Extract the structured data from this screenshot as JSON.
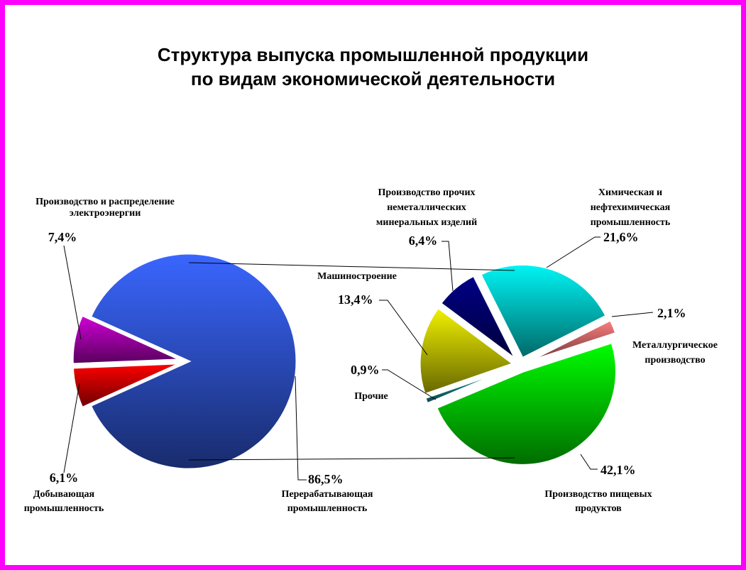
{
  "title_line1": "Структура выпуска промышленной продукции",
  "title_line2": "по видам экономической деятельности",
  "chart_data": [
    {
      "type": "pie",
      "slices": [
        {
          "label": "Перерабатывающая промышленность",
          "value": 86.5,
          "value_label": "86,5%",
          "color": "#3a66ff"
        },
        {
          "label": "Производство и распределение электроэнергии",
          "value": 7.4,
          "value_label": "7,4%",
          "color": "#d000d8"
        },
        {
          "label": "Добывающая промышленность",
          "value": 6.1,
          "value_label": "6,1%",
          "color": "#ff0000"
        }
      ],
      "exploded": [
        "Производство и распределение электроэнергии",
        "Добывающая промышленность"
      ]
    },
    {
      "type": "pie",
      "slices": [
        {
          "label": "Производство пищевых продуктов",
          "value": 42.1,
          "value_label": "42,1%",
          "color": "#00ff00"
        },
        {
          "label": "Прочие",
          "value": 0.9,
          "value_label": "0,9%",
          "color": "#1aa6a6"
        },
        {
          "label": "Машиностроение",
          "value": 13.4,
          "value_label": "13,4%",
          "color": "#f2f200"
        },
        {
          "label": "Производство прочих неметаллических минеральных изделий",
          "value": 6.4,
          "value_label": "6,4%",
          "color": "#000088"
        },
        {
          "label": "Химическая и нефтехимическая промышленность",
          "value": 21.6,
          "value_label": "21,6%",
          "color": "#00f5f5"
        },
        {
          "label": "Металлургическое производство",
          "value": 2.1,
          "value_label": "2,1%",
          "color": "#ff8080"
        }
      ],
      "breakdown_of": "Перерабатывающая промышленность"
    }
  ],
  "label_lines": {
    "Производство и распределение электроэнергии": [
      "Производство и распределение",
      "электроэнергии"
    ],
    "Добывающая промышленность": [
      "Добывающая",
      "промышленность"
    ],
    "Перерабатывающая промышленность": [
      "Перерабатывающая",
      "промышленность"
    ],
    "Производство прочих неметаллических минеральных изделий": [
      "Производство прочих",
      "неметаллических",
      "минеральных изделий"
    ],
    "Химическая и нефтехимическая промышленность": [
      "Химическая и",
      "нефтехимическая",
      "промышленность"
    ],
    "Машиностроение": [
      "Машиностроение"
    ],
    "Металлургическое производство": [
      "Металлургическое",
      "производство"
    ],
    "Прочие": [
      "Прочие"
    ],
    "Производство пищевых продуктов": [
      "Производство пищевых",
      "продуктов"
    ]
  }
}
